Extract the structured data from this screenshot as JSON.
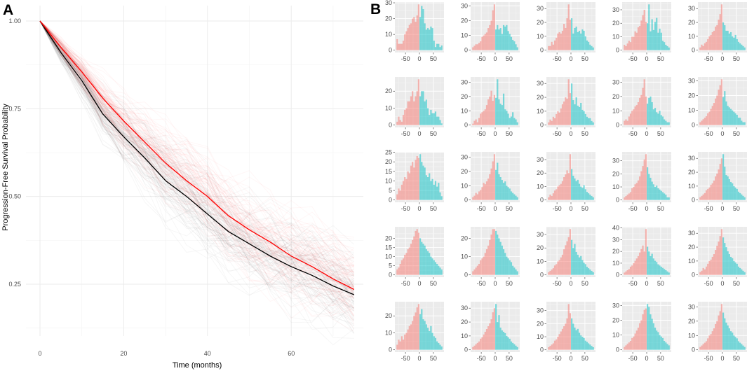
{
  "chart_data": [
    {
      "panel_label": "A",
      "type": "line",
      "xlabel": "Time (months)",
      "ylabel": "Progression-Free Survival Probability",
      "xlim": [
        0,
        75
      ],
      "ylim": [
        0.125,
        1.0
      ],
      "x_ticks": [
        "0",
        "20",
        "40",
        "60"
      ],
      "y_ticks": [
        "1.00",
        "0.75",
        "0.50",
        "0.25"
      ],
      "grid": true,
      "x": [
        0,
        5,
        10,
        15,
        20,
        25,
        30,
        35,
        40,
        45,
        50,
        55,
        60,
        65,
        70,
        75
      ],
      "series": [
        {
          "color": "#000000",
          "values": [
            1.0,
            0.91,
            0.83,
            0.735,
            0.67,
            0.61,
            0.545,
            0.5,
            0.45,
            0.4,
            0.365,
            0.33,
            0.3,
            0.275,
            0.245,
            0.22
          ]
        },
        {
          "color": "#ff0000",
          "values": [
            1.0,
            0.925,
            0.855,
            0.78,
            0.715,
            0.655,
            0.595,
            0.545,
            0.5,
            0.445,
            0.405,
            0.37,
            0.33,
            0.3,
            0.265,
            0.235
          ]
        }
      ],
      "simulated_bundle_colors": [
        "#000000",
        "#ff0000"
      ]
    },
    {
      "panel_label": "B",
      "type": "bar",
      "subtype": "histogram-grid",
      "rows": 5,
      "cols": 5,
      "bin_start": -82.5,
      "bin_width": 5.5,
      "x_ticks": [
        "-50",
        "0",
        "50"
      ],
      "negative_color": "#F8766D",
      "positive_color": "#00BFC4",
      "grid": true,
      "histograms": [
        {
          "y_ticks": [
            0,
            10,
            20,
            30
          ],
          "counts": [
            7,
            4,
            4,
            4,
            6,
            10,
            12,
            14,
            16,
            17,
            20,
            21,
            18,
            22,
            29,
            21,
            28,
            26,
            17,
            13,
            14,
            13,
            15,
            14,
            6,
            2,
            4,
            4,
            2,
            3
          ]
        },
        {
          "y_ticks": [
            0,
            10,
            20,
            30
          ],
          "counts": [
            2,
            3,
            4,
            4,
            5,
            6,
            9,
            10,
            11,
            12,
            15,
            17,
            20,
            27,
            31,
            14,
            17,
            14,
            15,
            11,
            17,
            16,
            17,
            13,
            11,
            9,
            7,
            6,
            4,
            2
          ]
        },
        {
          "y_ticks": [
            0,
            10,
            20,
            30
          ],
          "counts": [
            3,
            3,
            6,
            4,
            7,
            9,
            12,
            13,
            12,
            14,
            19,
            16,
            23,
            33,
            22,
            23,
            12,
            16,
            17,
            13,
            14,
            12,
            15,
            14,
            10,
            7,
            6,
            4,
            3,
            2
          ]
        },
        {
          "y_ticks": [
            0,
            10,
            20,
            30
          ],
          "counts": [
            4,
            3,
            5,
            7,
            6,
            10,
            10,
            14,
            13,
            17,
            18,
            22,
            26,
            30,
            21,
            20,
            34,
            14,
            23,
            15,
            21,
            24,
            13,
            16,
            13,
            7,
            6,
            4,
            3,
            2
          ]
        },
        {
          "y_ticks": [
            0,
            10,
            20,
            30
          ],
          "counts": [
            2,
            4,
            3,
            5,
            6,
            8,
            10,
            11,
            13,
            14,
            17,
            18,
            22,
            26,
            33,
            20,
            18,
            14,
            14,
            12,
            13,
            10,
            9,
            11,
            8,
            6,
            5,
            4,
            3,
            2
          ]
        },
        {
          "y_ticks": [
            0,
            10,
            20
          ],
          "counts": [
            2,
            5,
            3,
            2,
            6,
            9,
            10,
            14,
            14,
            17,
            20,
            14,
            17,
            20,
            27,
            17,
            20,
            20,
            14,
            15,
            10,
            6,
            9,
            7,
            7,
            8,
            5,
            5,
            3,
            1
          ]
        },
        {
          "y_ticks": [
            0,
            10,
            20,
            30
          ],
          "counts": [
            1,
            3,
            4,
            2,
            5,
            8,
            9,
            10,
            11,
            14,
            18,
            20,
            24,
            17,
            21,
            19,
            32,
            18,
            15,
            14,
            22,
            11,
            10,
            8,
            5,
            6,
            9,
            5,
            4,
            2
          ]
        },
        {
          "y_ticks": [
            0,
            10,
            20,
            30
          ],
          "counts": [
            2,
            4,
            3,
            6,
            5,
            8,
            10,
            9,
            12,
            15,
            17,
            20,
            19,
            33,
            23,
            30,
            18,
            15,
            20,
            14,
            13,
            16,
            11,
            10,
            8,
            6,
            5,
            5,
            3,
            2
          ]
        },
        {
          "y_ticks": [
            0,
            10,
            20,
            30
          ],
          "counts": [
            3,
            4,
            3,
            6,
            8,
            10,
            11,
            13,
            14,
            16,
            19,
            21,
            26,
            32,
            20,
            15,
            19,
            20,
            16,
            11,
            12,
            9,
            8,
            10,
            7,
            6,
            4,
            3,
            2,
            2
          ]
        },
        {
          "y_ticks": [
            0,
            10,
            20,
            30
          ],
          "counts": [
            2,
            3,
            4,
            5,
            6,
            8,
            9,
            11,
            13,
            15,
            18,
            20,
            24,
            27,
            31,
            19,
            23,
            16,
            13,
            12,
            11,
            10,
            9,
            8,
            7,
            5,
            5,
            3,
            2,
            2
          ]
        },
        {
          "y_ticks": [
            0,
            5,
            10,
            15,
            20,
            25
          ],
          "counts": [
            3,
            6,
            5,
            8,
            10,
            12,
            11,
            15,
            14,
            18,
            20,
            17,
            21,
            23,
            22,
            24,
            20,
            18,
            17,
            13,
            12,
            14,
            10,
            11,
            8,
            10,
            7,
            9,
            4,
            2
          ]
        },
        {
          "y_ticks": [
            0,
            10,
            20,
            30
          ],
          "counts": [
            2,
            3,
            5,
            4,
            6,
            7,
            9,
            12,
            11,
            13,
            15,
            18,
            22,
            27,
            32,
            21,
            26,
            18,
            16,
            14,
            12,
            13,
            10,
            9,
            8,
            6,
            5,
            4,
            3,
            2
          ]
        },
        {
          "y_ticks": [
            0,
            10,
            20,
            30
          ],
          "counts": [
            2,
            4,
            3,
            5,
            7,
            8,
            10,
            11,
            12,
            14,
            17,
            19,
            22,
            20,
            34,
            23,
            18,
            16,
            14,
            15,
            12,
            10,
            9,
            11,
            8,
            6,
            5,
            4,
            3,
            2
          ]
        },
        {
          "y_ticks": [
            0,
            10,
            20,
            30
          ],
          "counts": [
            2,
            3,
            4,
            5,
            6,
            9,
            10,
            12,
            13,
            15,
            18,
            22,
            26,
            31,
            35,
            25,
            20,
            17,
            14,
            12,
            10,
            11,
            9,
            8,
            7,
            6,
            5,
            4,
            2,
            2
          ]
        },
        {
          "y_ticks": [
            0,
            10,
            20,
            30
          ],
          "counts": [
            2,
            3,
            4,
            5,
            7,
            8,
            9,
            11,
            12,
            14,
            17,
            19,
            22,
            26,
            30,
            33,
            24,
            18,
            17,
            15,
            13,
            12,
            10,
            9,
            8,
            6,
            5,
            4,
            3,
            2
          ]
        },
        {
          "y_ticks": [
            0,
            5,
            10,
            15,
            20
          ],
          "counts": [
            3,
            4,
            6,
            8,
            9,
            11,
            12,
            14,
            15,
            17,
            19,
            21,
            24,
            25,
            23,
            20,
            18,
            17,
            16,
            14,
            13,
            12,
            10,
            9,
            8,
            7,
            6,
            5,
            4,
            3
          ]
        },
        {
          "y_ticks": [
            0,
            10,
            20
          ],
          "counts": [
            2,
            3,
            4,
            5,
            6,
            8,
            9,
            10,
            12,
            14,
            16,
            19,
            22,
            25,
            25,
            24,
            22,
            20,
            18,
            16,
            14,
            12,
            10,
            9,
            8,
            7,
            5,
            4,
            3,
            2
          ]
        },
        {
          "y_ticks": [
            0,
            10,
            20,
            30
          ],
          "counts": [
            2,
            3,
            4,
            5,
            7,
            8,
            10,
            11,
            13,
            15,
            19,
            22,
            25,
            28,
            34,
            26,
            20,
            23,
            17,
            15,
            13,
            14,
            11,
            9,
            8,
            6,
            5,
            4,
            3,
            2
          ]
        },
        {
          "y_ticks": [
            0,
            10,
            20,
            30,
            40
          ],
          "counts": [
            2,
            3,
            4,
            5,
            7,
            8,
            10,
            12,
            14,
            16,
            19,
            22,
            25,
            20,
            39,
            24,
            20,
            16,
            18,
            14,
            12,
            11,
            9,
            8,
            7,
            6,
            5,
            4,
            3,
            2
          ]
        },
        {
          "y_ticks": [
            0,
            10,
            20,
            30
          ],
          "counts": [
            2,
            3,
            5,
            4,
            6,
            8,
            10,
            11,
            13,
            15,
            18,
            21,
            24,
            28,
            33,
            27,
            23,
            20,
            17,
            15,
            13,
            12,
            10,
            9,
            8,
            6,
            5,
            4,
            3,
            2
          ]
        },
        {
          "y_ticks": [
            0,
            10,
            20
          ],
          "counts": [
            3,
            6,
            5,
            8,
            6,
            9,
            10,
            12,
            14,
            15,
            17,
            20,
            22,
            25,
            27,
            21,
            24,
            18,
            17,
            15,
            13,
            11,
            14,
            10,
            8,
            7,
            5,
            4,
            3,
            2
          ]
        },
        {
          "y_ticks": [
            0,
            10,
            20,
            30
          ],
          "counts": [
            2,
            3,
            4,
            5,
            6,
            8,
            9,
            11,
            13,
            15,
            17,
            19,
            22,
            27,
            30,
            33,
            20,
            25,
            16,
            14,
            13,
            12,
            10,
            9,
            8,
            6,
            5,
            4,
            3,
            2
          ]
        },
        {
          "y_ticks": [
            0,
            10,
            20,
            30
          ],
          "counts": [
            2,
            3,
            4,
            5,
            7,
            8,
            10,
            12,
            14,
            16,
            18,
            20,
            24,
            35,
            28,
            24,
            20,
            17,
            15,
            16,
            13,
            11,
            10,
            9,
            7,
            6,
            5,
            4,
            3,
            2
          ]
        },
        {
          "y_ticks": [
            0,
            10,
            20,
            30
          ],
          "counts": [
            2,
            3,
            4,
            5,
            6,
            8,
            9,
            11,
            13,
            15,
            18,
            20,
            24,
            27,
            28,
            31,
            29,
            24,
            21,
            18,
            15,
            13,
            12,
            10,
            9,
            8,
            6,
            5,
            4,
            3
          ]
        },
        {
          "y_ticks": [
            0,
            10,
            20,
            30
          ],
          "counts": [
            2,
            3,
            4,
            5,
            6,
            8,
            10,
            11,
            13,
            15,
            18,
            20,
            24,
            27,
            32,
            26,
            22,
            19,
            17,
            15,
            13,
            12,
            10,
            9,
            8,
            6,
            5,
            4,
            3,
            2
          ]
        }
      ]
    }
  ]
}
